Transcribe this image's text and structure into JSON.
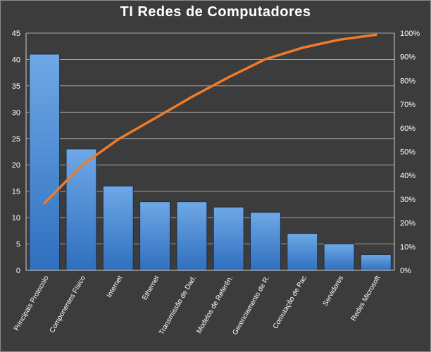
{
  "chart_data": {
    "type": "bar",
    "title": "TI Redes de Computadores",
    "categories": [
      "Principais Protocolo",
      "Componentes Físico",
      "Internet",
      "Ethernet",
      "Transmissão de Dad.",
      "Modelos de Referên.",
      "Gerenciamento de R.",
      "Comutação de Pac",
      "Servidores",
      "Redes Microsoft"
    ],
    "series": [
      {
        "type": "bar",
        "values": [
          41,
          23,
          16,
          13,
          13,
          12,
          11,
          7,
          5,
          3
        ]
      },
      {
        "type": "line",
        "axis": "right",
        "values": [
          28.3,
          44.1,
          55.2,
          64.1,
          73.1,
          81.4,
          89.0,
          93.8,
          97.2,
          99.3
        ]
      }
    ],
    "ylim": [
      0,
      45
    ],
    "y_ticks": [
      "0",
      "5",
      "10",
      "15",
      "20",
      "25",
      "30",
      "35",
      "40",
      "45"
    ],
    "y2lim": [
      0,
      100
    ],
    "y2_ticks": [
      "0%",
      "10%",
      "20%",
      "30%",
      "40%",
      "50%",
      "60%",
      "70%",
      "80%",
      "90%",
      "100%"
    ],
    "grid": true,
    "colors": {
      "bar": "#4a90d9",
      "line": "#f07b2a",
      "background": "#3c3c3c"
    }
  }
}
